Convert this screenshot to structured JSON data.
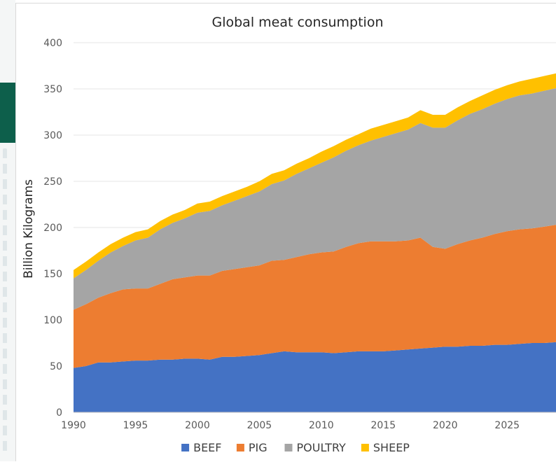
{
  "chart_data": {
    "type": "area",
    "stacked": true,
    "title": "Global meat consumption",
    "xlabel": "",
    "ylabel": "Billion Kilograms",
    "xlim": [
      1990,
      2029
    ],
    "ylim": [
      0,
      400
    ],
    "x_ticks": [
      1990,
      1995,
      2000,
      2005,
      2010,
      2015,
      2020,
      2025
    ],
    "y_ticks": [
      0,
      50,
      100,
      150,
      200,
      250,
      300,
      350,
      400
    ],
    "grid": true,
    "legend_position": "bottom",
    "x": [
      1990,
      1991,
      1992,
      1993,
      1994,
      1995,
      1996,
      1997,
      1998,
      1999,
      2000,
      2001,
      2002,
      2003,
      2004,
      2005,
      2006,
      2007,
      2008,
      2009,
      2010,
      2011,
      2012,
      2013,
      2014,
      2015,
      2016,
      2017,
      2018,
      2019,
      2020,
      2021,
      2022,
      2023,
      2024,
      2025,
      2026,
      2027,
      2028,
      2029
    ],
    "series": [
      {
        "name": "BEEF",
        "color": "#4472c4",
        "values": [
          48,
          50,
          54,
          54,
          55,
          56,
          56,
          57,
          57,
          58,
          58,
          57,
          60,
          60,
          61,
          62,
          64,
          66,
          65,
          65,
          65,
          64,
          65,
          66,
          66,
          66,
          67,
          68,
          69,
          70,
          71,
          71,
          72,
          72,
          73,
          73,
          74,
          75,
          75,
          76
        ]
      },
      {
        "name": "PIG",
        "color": "#ed7d31",
        "values": [
          63,
          67,
          70,
          75,
          78,
          78,
          78,
          82,
          87,
          88,
          90,
          91,
          93,
          95,
          96,
          97,
          100,
          99,
          103,
          106,
          108,
          110,
          114,
          117,
          119,
          119,
          118,
          118,
          120,
          109,
          106,
          111,
          114,
          117,
          120,
          123,
          124,
          124,
          126,
          127
        ]
      },
      {
        "name": "POULTRY",
        "color": "#a5a5a5",
        "values": [
          34,
          37,
          40,
          44,
          47,
          52,
          55,
          59,
          61,
          64,
          68,
          70,
          71,
          74,
          77,
          80,
          83,
          86,
          90,
          93,
          97,
          102,
          104,
          106,
          109,
          113,
          117,
          120,
          124,
          129,
          131,
          134,
          137,
          139,
          141,
          143,
          145,
          146,
          147,
          148
        ]
      },
      {
        "name": "SHEEP",
        "color": "#ffc000",
        "values": [
          9,
          9,
          9,
          9,
          9,
          9,
          9,
          9,
          9,
          9,
          10,
          10,
          10,
          10,
          10,
          11,
          11,
          11,
          11,
          11,
          12,
          12,
          12,
          12,
          13,
          13,
          13,
          13,
          14,
          14,
          14,
          14,
          14,
          15,
          15,
          15,
          15,
          16,
          16,
          16
        ]
      }
    ]
  }
}
